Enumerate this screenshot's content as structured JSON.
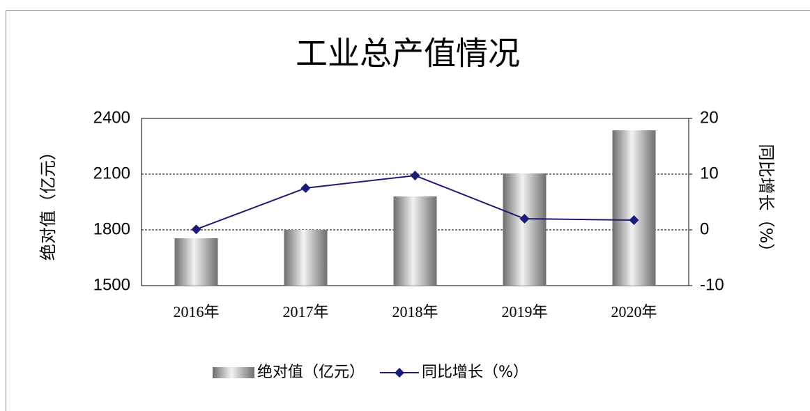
{
  "chart_data": {
    "type": "combo",
    "title": "工业总产值情况",
    "y_label": "绝对值（亿元）",
    "y2_label": "同比增长（%）",
    "categories": [
      "2016年",
      "2017年",
      "2018年",
      "2019年",
      "2020年"
    ],
    "series": [
      {
        "name": "绝对值（亿元）",
        "type": "bar",
        "color": "#6e6e6e",
        "values": [
          1755,
          1800,
          1980,
          2104,
          2336
        ]
      },
      {
        "name": "同比增长（%）",
        "type": "line",
        "axis": "y2",
        "color": "#1c1c78",
        "values": [
          0.1,
          7.5,
          9.75,
          2.0,
          1.75
        ]
      }
    ],
    "ylim": [
      1500,
      2400
    ],
    "yticks": [
      1500,
      1800,
      2100,
      2400
    ],
    "y2lim": [
      -10,
      20
    ],
    "y2ticks": [
      -10,
      0,
      10,
      20
    ],
    "grid": true
  }
}
